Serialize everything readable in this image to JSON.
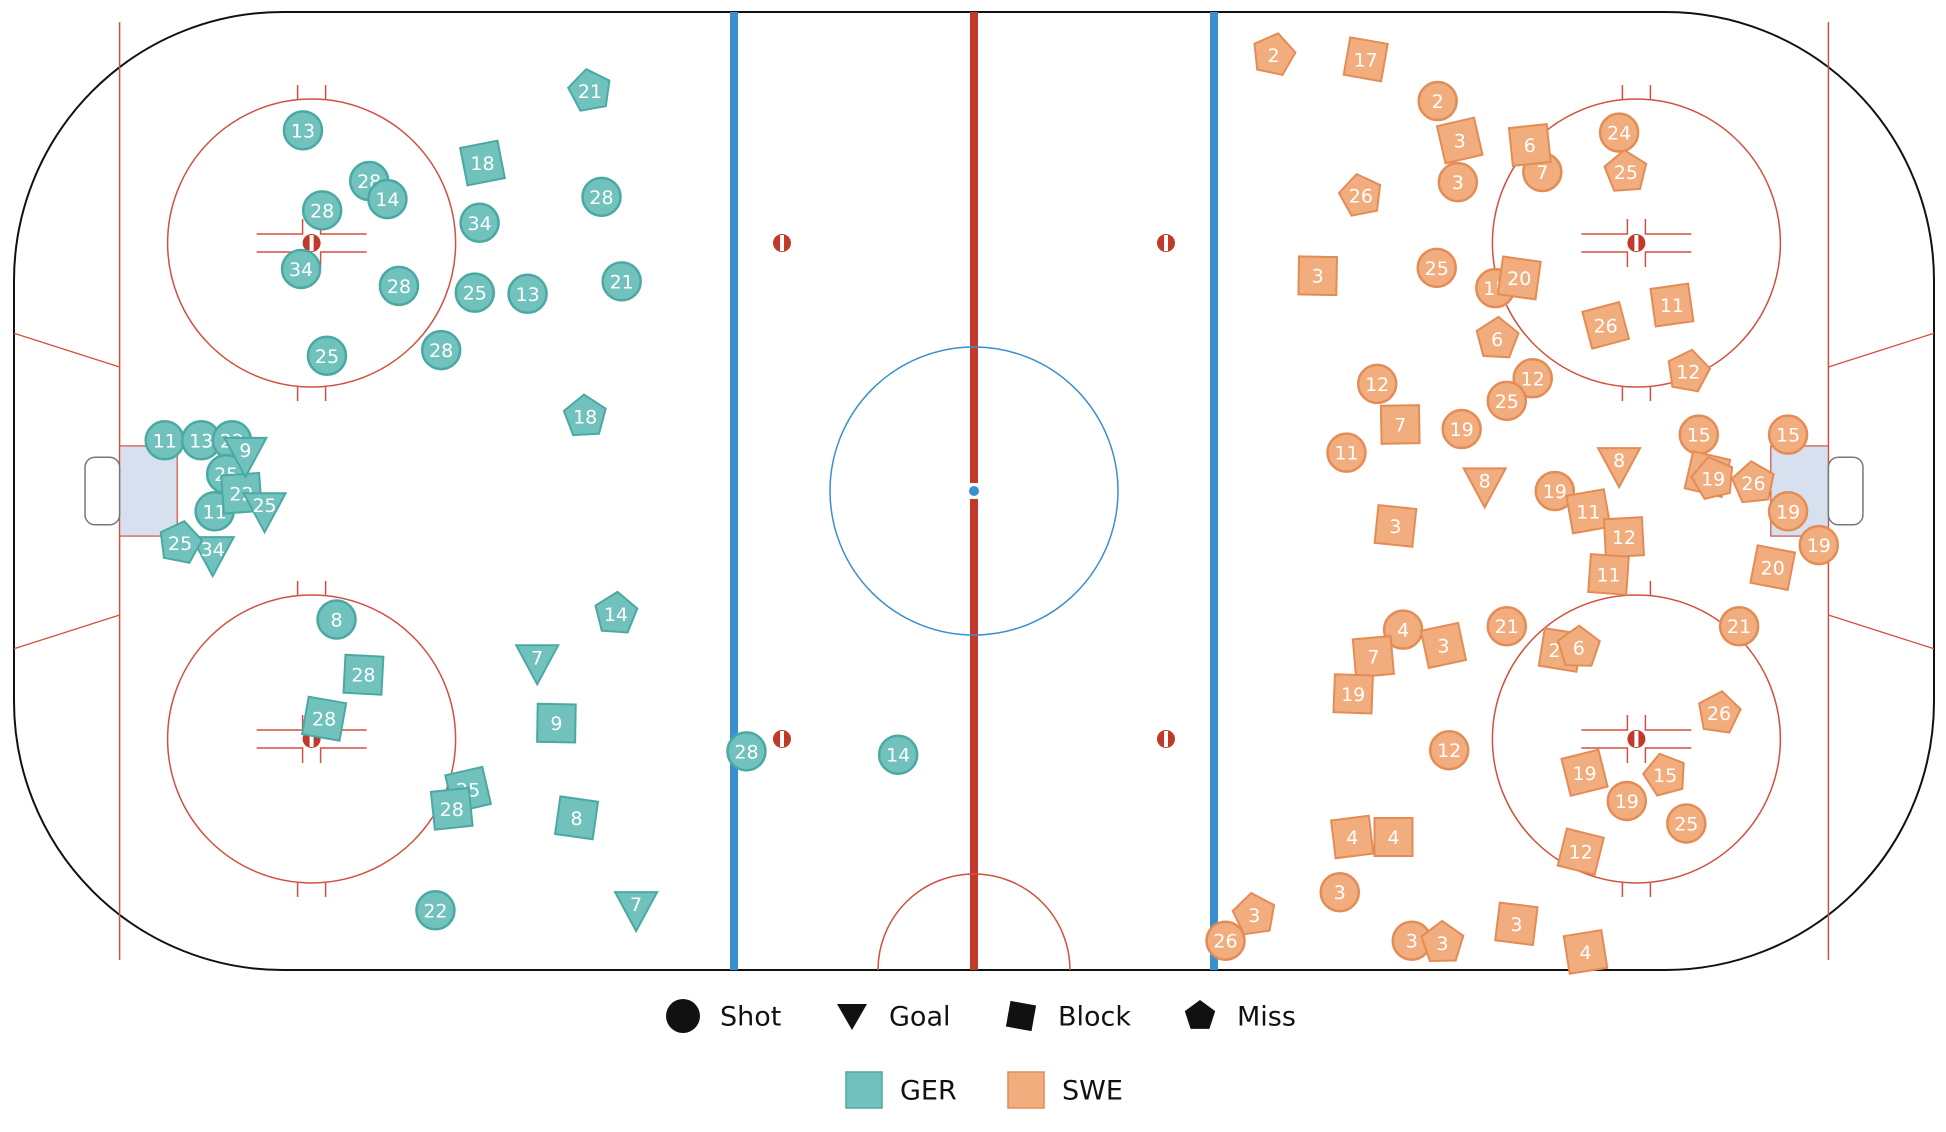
{
  "chart_data": {
    "type": "scatter",
    "title": "",
    "legend_position": "bottom-center",
    "xlim": [
      -100,
      100
    ],
    "ylim": [
      -42.5,
      42.5
    ],
    "rink": {
      "length_ft": 200,
      "width_ft": 85,
      "line_colors": {
        "red": "#c0392b",
        "blue": "#3a8fd0",
        "thin": "#d2503f",
        "crease": "#d6e0ee"
      }
    },
    "teams": [
      {
        "name": "GER",
        "color": "#71c2bd",
        "stroke": "#4aa9a3"
      },
      {
        "name": "SWE",
        "color": "#f2ad7e",
        "stroke": "#e38c56"
      }
    ],
    "event_types": [
      {
        "key": "shot",
        "label": "Shot"
      },
      {
        "key": "goal",
        "label": "Goal"
      },
      {
        "key": "block",
        "label": "Block"
      },
      {
        "key": "miss",
        "label": "Miss"
      }
    ],
    "events": {
      "GER": [
        {
          "x": -69.9,
          "y": 32.0,
          "type": "shot",
          "player": "13"
        },
        {
          "x": -63.0,
          "y": 27.5,
          "type": "shot",
          "player": "28"
        },
        {
          "x": -61.1,
          "y": 25.9,
          "type": "shot",
          "player": "14"
        },
        {
          "x": -67.9,
          "y": 24.9,
          "type": "shot",
          "player": "28"
        },
        {
          "x": -51.5,
          "y": 23.8,
          "type": "shot",
          "player": "34"
        },
        {
          "x": -70.1,
          "y": 19.7,
          "type": "shot",
          "player": "34"
        },
        {
          "x": -59.9,
          "y": 18.2,
          "type": "shot",
          "player": "28"
        },
        {
          "x": -52.0,
          "y": 17.6,
          "type": "shot",
          "player": "25"
        },
        {
          "x": -46.5,
          "y": 17.5,
          "type": "shot",
          "player": "13"
        },
        {
          "x": -67.4,
          "y": 12.0,
          "type": "shot",
          "player": "25"
        },
        {
          "x": -55.5,
          "y": 12.5,
          "type": "shot",
          "player": "28"
        },
        {
          "x": -38.8,
          "y": 26.1,
          "type": "shot",
          "player": "28"
        },
        {
          "x": -36.7,
          "y": 18.6,
          "type": "shot",
          "player": "21"
        },
        {
          "x": -84.3,
          "y": 4.5,
          "type": "shot",
          "player": "11"
        },
        {
          "x": -80.5,
          "y": 4.5,
          "type": "shot",
          "player": "13"
        },
        {
          "x": -77.3,
          "y": 4.5,
          "type": "shot",
          "player": "22"
        },
        {
          "x": -77.9,
          "y": 1.5,
          "type": "shot",
          "player": "25"
        },
        {
          "x": -79.1,
          "y": -1.8,
          "type": "shot",
          "player": "11"
        },
        {
          "x": -66.4,
          "y": -11.4,
          "type": "shot",
          "player": "8"
        },
        {
          "x": -56.1,
          "y": -37.2,
          "type": "shot",
          "player": "22"
        },
        {
          "x": -23.7,
          "y": -23.1,
          "type": "shot",
          "player": "28"
        },
        {
          "x": -7.9,
          "y": -23.4,
          "type": "shot",
          "player": "14"
        },
        {
          "x": -51.2,
          "y": 29.1,
          "type": "block",
          "player": "18"
        },
        {
          "x": -76.3,
          "y": -0.2,
          "type": "block",
          "player": "22"
        },
        {
          "x": -63.6,
          "y": -16.3,
          "type": "block",
          "player": "28"
        },
        {
          "x": -67.7,
          "y": -20.2,
          "type": "block",
          "player": "28"
        },
        {
          "x": -52.7,
          "y": -26.5,
          "type": "block",
          "player": "25"
        },
        {
          "x": -54.4,
          "y": -28.2,
          "type": "block",
          "player": "28"
        },
        {
          "x": -43.5,
          "y": -20.6,
          "type": "block",
          "player": "9"
        },
        {
          "x": -41.4,
          "y": -29.0,
          "type": "block",
          "player": "8"
        },
        {
          "x": -75.9,
          "y": 3.2,
          "type": "goal",
          "player": "9"
        },
        {
          "x": -73.9,
          "y": -1.7,
          "type": "goal",
          "player": "25"
        },
        {
          "x": -79.3,
          "y": -5.6,
          "type": "goal",
          "player": "34"
        },
        {
          "x": -45.5,
          "y": -15.2,
          "type": "goal",
          "player": "7"
        },
        {
          "x": -35.2,
          "y": -37.1,
          "type": "goal",
          "player": "7"
        },
        {
          "x": -40.0,
          "y": 35.5,
          "type": "miss",
          "player": "21"
        },
        {
          "x": -40.5,
          "y": 6.6,
          "type": "miss",
          "player": "18"
        },
        {
          "x": -37.3,
          "y": -10.9,
          "type": "miss",
          "player": "14"
        },
        {
          "x": -82.7,
          "y": -4.6,
          "type": "miss",
          "player": "25"
        }
      ],
      "SWE": [
        {
          "x": 48.3,
          "y": 34.6,
          "type": "shot",
          "player": "2"
        },
        {
          "x": 67.2,
          "y": 31.8,
          "type": "shot",
          "player": "24"
        },
        {
          "x": 59.2,
          "y": 28.3,
          "type": "shot",
          "player": "7"
        },
        {
          "x": 50.4,
          "y": 27.4,
          "type": "shot",
          "player": "3"
        },
        {
          "x": 48.2,
          "y": 19.8,
          "type": "shot",
          "player": "25"
        },
        {
          "x": 54.3,
          "y": 18.0,
          "type": "shot",
          "player": "15"
        },
        {
          "x": 58.2,
          "y": 10.0,
          "type": "shot",
          "player": "12"
        },
        {
          "x": 55.5,
          "y": 8.0,
          "type": "shot",
          "player": "25"
        },
        {
          "x": 42.0,
          "y": 9.5,
          "type": "shot",
          "player": "12"
        },
        {
          "x": 50.8,
          "y": 5.5,
          "type": "shot",
          "player": "19"
        },
        {
          "x": 38.8,
          "y": 3.4,
          "type": "shot",
          "player": "11"
        },
        {
          "x": 60.5,
          "y": 0.0,
          "type": "shot",
          "player": "19"
        },
        {
          "x": 75.5,
          "y": 5.0,
          "type": "shot",
          "player": "15"
        },
        {
          "x": 84.8,
          "y": 5.0,
          "type": "shot",
          "player": "15"
        },
        {
          "x": 84.8,
          "y": -1.8,
          "type": "shot",
          "player": "19"
        },
        {
          "x": 88.0,
          "y": -4.8,
          "type": "shot",
          "player": "19"
        },
        {
          "x": 79.7,
          "y": -12.0,
          "type": "shot",
          "player": "21"
        },
        {
          "x": 55.5,
          "y": -12.0,
          "type": "shot",
          "player": "21"
        },
        {
          "x": 44.7,
          "y": -12.3,
          "type": "shot",
          "player": "4"
        },
        {
          "x": 49.5,
          "y": -23.0,
          "type": "shot",
          "player": "12"
        },
        {
          "x": 68.0,
          "y": -27.5,
          "type": "shot",
          "player": "19"
        },
        {
          "x": 74.2,
          "y": -29.5,
          "type": "shot",
          "player": "25"
        },
        {
          "x": 38.1,
          "y": -35.6,
          "type": "shot",
          "player": "3"
        },
        {
          "x": 26.2,
          "y": -39.9,
          "type": "shot",
          "player": "26"
        },
        {
          "x": 45.6,
          "y": -39.9,
          "type": "shot",
          "player": "3"
        },
        {
          "x": 40.8,
          "y": 38.3,
          "type": "block",
          "player": "17"
        },
        {
          "x": 50.6,
          "y": 31.1,
          "type": "block",
          "player": "3"
        },
        {
          "x": 57.9,
          "y": 30.7,
          "type": "block",
          "player": "6"
        },
        {
          "x": 35.8,
          "y": 19.1,
          "type": "block",
          "player": "3"
        },
        {
          "x": 56.8,
          "y": 18.9,
          "type": "block",
          "player": "20"
        },
        {
          "x": 65.8,
          "y": 14.7,
          "type": "block",
          "player": "26"
        },
        {
          "x": 72.7,
          "y": 16.5,
          "type": "block",
          "player": "11"
        },
        {
          "x": 44.4,
          "y": 5.9,
          "type": "block",
          "player": "7"
        },
        {
          "x": 43.9,
          "y": -3.1,
          "type": "block",
          "player": "3"
        },
        {
          "x": 76.4,
          "y": 1.5,
          "type": "block",
          "player": "26"
        },
        {
          "x": 64.0,
          "y": -1.8,
          "type": "block",
          "player": "11"
        },
        {
          "x": 67.7,
          "y": -4.1,
          "type": "block",
          "player": "12"
        },
        {
          "x": 66.1,
          "y": -7.4,
          "type": "block",
          "player": "11"
        },
        {
          "x": 83.2,
          "y": -6.8,
          "type": "block",
          "player": "20"
        },
        {
          "x": 48.9,
          "y": -13.7,
          "type": "block",
          "player": "3"
        },
        {
          "x": 41.6,
          "y": -14.7,
          "type": "block",
          "player": "7"
        },
        {
          "x": 39.5,
          "y": -18.0,
          "type": "block",
          "player": "19"
        },
        {
          "x": 61.1,
          "y": -14.1,
          "type": "block",
          "player": "26"
        },
        {
          "x": 63.6,
          "y": -25.0,
          "type": "block",
          "player": "19"
        },
        {
          "x": 39.4,
          "y": -30.7,
          "type": "block",
          "player": "4"
        },
        {
          "x": 43.7,
          "y": -30.7,
          "type": "block",
          "player": "4"
        },
        {
          "x": 56.5,
          "y": -38.4,
          "type": "block",
          "player": "3"
        },
        {
          "x": 63.2,
          "y": -32.0,
          "type": "block",
          "player": "12"
        },
        {
          "x": 63.7,
          "y": -40.9,
          "type": "block",
          "player": "4"
        },
        {
          "x": 53.2,
          "y": 0.5,
          "type": "goal",
          "player": "8"
        },
        {
          "x": 67.2,
          "y": 2.3,
          "type": "goal",
          "player": "8"
        },
        {
          "x": 31.2,
          "y": 38.7,
          "type": "miss",
          "player": "2"
        },
        {
          "x": 40.3,
          "y": 26.2,
          "type": "miss",
          "player": "26"
        },
        {
          "x": 67.9,
          "y": 28.3,
          "type": "miss",
          "player": "25"
        },
        {
          "x": 54.5,
          "y": 13.5,
          "type": "miss",
          "player": "6"
        },
        {
          "x": 74.4,
          "y": 10.6,
          "type": "miss",
          "player": "12"
        },
        {
          "x": 77.0,
          "y": 1.1,
          "type": "miss",
          "player": "19"
        },
        {
          "x": 81.2,
          "y": 0.7,
          "type": "miss",
          "player": "26"
        },
        {
          "x": 63.0,
          "y": -13.9,
          "type": "miss",
          "player": "6"
        },
        {
          "x": 77.6,
          "y": -19.7,
          "type": "miss",
          "player": "26"
        },
        {
          "x": 72.0,
          "y": -25.2,
          "type": "miss",
          "player": "15"
        },
        {
          "x": 29.2,
          "y": -37.6,
          "type": "miss",
          "player": "3"
        },
        {
          "x": 48.8,
          "y": -40.1,
          "type": "miss",
          "player": "3"
        }
      ]
    }
  }
}
